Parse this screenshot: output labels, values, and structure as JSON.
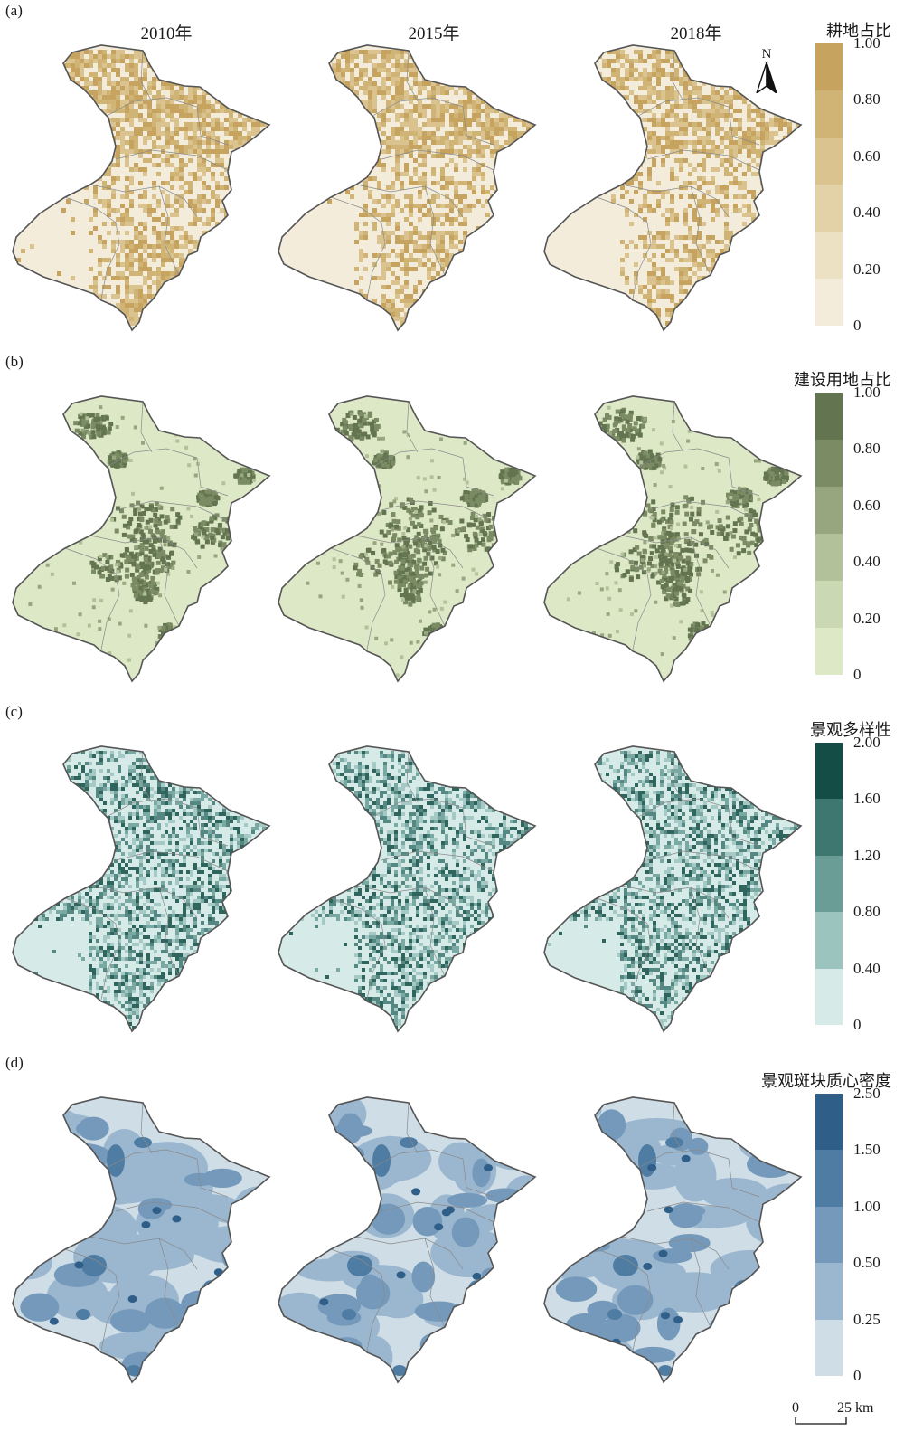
{
  "years": [
    "2010年",
    "2015年",
    "2018年"
  ],
  "north_label": "N",
  "scalebar": {
    "zero": "0",
    "end": "25 km"
  },
  "panels": [
    {
      "label": "(a)",
      "legend_title": "耕地占比",
      "ticks": [
        "1.00",
        "0.80",
        "0.60",
        "0.40",
        "0.20",
        "0"
      ],
      "colors": [
        "#c6a460",
        "#d0b476",
        "#dac38f",
        "#e3d2a8",
        "#ece1c3",
        "#f3ecdb"
      ],
      "pattern": "cropland"
    },
    {
      "label": "(b)",
      "legend_title": "建设用地占比",
      "ticks": [
        "1.00",
        "0.80",
        "0.60",
        "0.40",
        "0.20",
        "0"
      ],
      "colors": [
        "#637550",
        "#7b8c64",
        "#97a67f",
        "#b2c199",
        "#cad8b3",
        "#dde8c6"
      ],
      "pattern": "builtup"
    },
    {
      "label": "(c)",
      "legend_title": "景观多样性",
      "ticks": [
        "2.00",
        "1.60",
        "1.20",
        "0.80",
        "0.40",
        "0"
      ],
      "colors": [
        "#134d45",
        "#3e7770",
        "#6a9d96",
        "#9cc4be",
        "#d6ebe8"
      ],
      "pattern": "diversity"
    },
    {
      "label": "(d)",
      "legend_title": "景观斑块质心密度",
      "ticks": [
        "2.50",
        "1.50",
        "1.00",
        "0.50",
        "0.25",
        "0"
      ],
      "colors": [
        "#2f5f88",
        "#4f7ca2",
        "#7599ba",
        "#9bb7cf",
        "#cfdde6"
      ],
      "pattern": "density"
    }
  ]
}
